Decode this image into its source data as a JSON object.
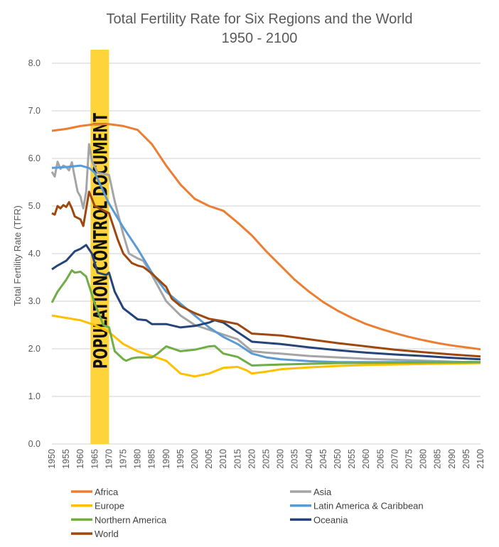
{
  "chart_data": {
    "type": "line",
    "title": "Total Fertility Rate for Six Regions and the World",
    "subtitle": "1950 - 2100",
    "xlabel": "",
    "ylabel": "Total Fertility Rate (TFR)",
    "xlim": [
      1950,
      2100
    ],
    "ylim": [
      0,
      8
    ],
    "grid": true,
    "legend_position": "bottom",
    "x_ticks": [
      "1950",
      "1955",
      "1960",
      "1965",
      "1970",
      "1975",
      "1980",
      "1985",
      "1990",
      "1995",
      "2000",
      "2005",
      "2010",
      "2015",
      "2020",
      "2025",
      "2030",
      "2035",
      "2040",
      "2045",
      "2050",
      "2055",
      "2060",
      "2065",
      "2070",
      "2075",
      "2080",
      "2085",
      "2090",
      "2095",
      "2100"
    ],
    "y_ticks": [
      "0.0",
      "1.0",
      "2.0",
      "3.0",
      "4.0",
      "5.0",
      "6.0",
      "7.0",
      "8.0"
    ],
    "annotation": {
      "text": "POPULATION CONTROL DOCUMENT",
      "x_range": [
        1963.5,
        1970
      ],
      "color": "#FFD43B"
    },
    "series": [
      {
        "name": "Africa",
        "color": "#ED7D31",
        "points": [
          [
            1950,
            6.58
          ],
          [
            1955,
            6.62
          ],
          [
            1960,
            6.68
          ],
          [
            1965,
            6.72
          ],
          [
            1970,
            6.72
          ],
          [
            1975,
            6.68
          ],
          [
            1980,
            6.6
          ],
          [
            1985,
            6.3
          ],
          [
            1990,
            5.85
          ],
          [
            1995,
            5.45
          ],
          [
            2000,
            5.15
          ],
          [
            2005,
            5.0
          ],
          [
            2010,
            4.9
          ],
          [
            2015,
            4.65
          ],
          [
            2020,
            4.38
          ],
          [
            2025,
            4.05
          ],
          [
            2030,
            3.75
          ],
          [
            2035,
            3.45
          ],
          [
            2040,
            3.2
          ],
          [
            2045,
            2.98
          ],
          [
            2050,
            2.8
          ],
          [
            2055,
            2.65
          ],
          [
            2060,
            2.52
          ],
          [
            2065,
            2.42
          ],
          [
            2070,
            2.33
          ],
          [
            2075,
            2.25
          ],
          [
            2080,
            2.18
          ],
          [
            2085,
            2.12
          ],
          [
            2090,
            2.07
          ],
          [
            2095,
            2.03
          ],
          [
            2100,
            1.99
          ]
        ]
      },
      {
        "name": "Asia",
        "color": "#A5A5A5",
        "points": [
          [
            1950,
            5.72
          ],
          [
            1951,
            5.62
          ],
          [
            1952,
            5.93
          ],
          [
            1953,
            5.78
          ],
          [
            1954,
            5.85
          ],
          [
            1955,
            5.82
          ],
          [
            1956,
            5.75
          ],
          [
            1957,
            5.92
          ],
          [
            1958,
            5.6
          ],
          [
            1959,
            5.3
          ],
          [
            1960,
            5.2
          ],
          [
            1961,
            4.95
          ],
          [
            1962,
            5.3
          ],
          [
            1963,
            6.3
          ],
          [
            1964,
            5.95
          ],
          [
            1966,
            5.7
          ],
          [
            1970,
            5.65
          ],
          [
            1972,
            5.1
          ],
          [
            1975,
            4.4
          ],
          [
            1977,
            4.0
          ],
          [
            1980,
            3.9
          ],
          [
            1982,
            3.85
          ],
          [
            1985,
            3.55
          ],
          [
            1990,
            3.0
          ],
          [
            1995,
            2.7
          ],
          [
            2000,
            2.5
          ],
          [
            2005,
            2.4
          ],
          [
            2010,
            2.3
          ],
          [
            2015,
            2.2
          ],
          [
            2020,
            1.95
          ],
          [
            2025,
            1.92
          ],
          [
            2030,
            1.9
          ],
          [
            2040,
            1.85
          ],
          [
            2050,
            1.82
          ],
          [
            2060,
            1.79
          ],
          [
            2070,
            1.77
          ],
          [
            2080,
            1.75
          ],
          [
            2090,
            1.73
          ],
          [
            2100,
            1.72
          ]
        ]
      },
      {
        "name": "Europe",
        "color": "#FFC000",
        "points": [
          [
            1950,
            2.7
          ],
          [
            1955,
            2.65
          ],
          [
            1960,
            2.6
          ],
          [
            1965,
            2.5
          ],
          [
            1970,
            2.35
          ],
          [
            1975,
            2.1
          ],
          [
            1980,
            1.95
          ],
          [
            1985,
            1.85
          ],
          [
            1990,
            1.75
          ],
          [
            1995,
            1.48
          ],
          [
            2000,
            1.42
          ],
          [
            2005,
            1.48
          ],
          [
            2010,
            1.6
          ],
          [
            2015,
            1.62
          ],
          [
            2018,
            1.55
          ],
          [
            2020,
            1.48
          ],
          [
            2025,
            1.52
          ],
          [
            2030,
            1.57
          ],
          [
            2040,
            1.61
          ],
          [
            2050,
            1.64
          ],
          [
            2060,
            1.66
          ],
          [
            2080,
            1.68
          ],
          [
            2100,
            1.7
          ]
        ]
      },
      {
        "name": "Latin America & Caribbean",
        "color": "#5B9BD5",
        "points": [
          [
            1950,
            5.8
          ],
          [
            1955,
            5.82
          ],
          [
            1960,
            5.85
          ],
          [
            1963,
            5.8
          ],
          [
            1965,
            5.7
          ],
          [
            1970,
            5.05
          ],
          [
            1975,
            4.55
          ],
          [
            1980,
            4.1
          ],
          [
            1985,
            3.6
          ],
          [
            1990,
            3.2
          ],
          [
            1995,
            2.95
          ],
          [
            2000,
            2.7
          ],
          [
            2005,
            2.45
          ],
          [
            2010,
            2.25
          ],
          [
            2015,
            2.1
          ],
          [
            2020,
            1.9
          ],
          [
            2025,
            1.82
          ],
          [
            2030,
            1.78
          ],
          [
            2040,
            1.74
          ],
          [
            2050,
            1.72
          ],
          [
            2100,
            1.72
          ]
        ]
      },
      {
        "name": "Northern America",
        "color": "#70AD47",
        "points": [
          [
            1950,
            2.97
          ],
          [
            1952,
            3.2
          ],
          [
            1955,
            3.45
          ],
          [
            1957,
            3.65
          ],
          [
            1958,
            3.6
          ],
          [
            1960,
            3.62
          ],
          [
            1962,
            3.52
          ],
          [
            1965,
            2.95
          ],
          [
            1968,
            2.5
          ],
          [
            1970,
            2.45
          ],
          [
            1972,
            1.95
          ],
          [
            1975,
            1.78
          ],
          [
            1976,
            1.75
          ],
          [
            1978,
            1.8
          ],
          [
            1980,
            1.82
          ],
          [
            1985,
            1.82
          ],
          [
            1987,
            1.9
          ],
          [
            1990,
            2.05
          ],
          [
            1995,
            1.95
          ],
          [
            2000,
            1.98
          ],
          [
            2005,
            2.05
          ],
          [
            2007,
            2.06
          ],
          [
            2010,
            1.9
          ],
          [
            2015,
            1.83
          ],
          [
            2020,
            1.65
          ],
          [
            2030,
            1.67
          ],
          [
            2050,
            1.7
          ],
          [
            2100,
            1.72
          ]
        ]
      },
      {
        "name": "Oceania",
        "color": "#264478",
        "points": [
          [
            1950,
            3.67
          ],
          [
            1952,
            3.75
          ],
          [
            1955,
            3.85
          ],
          [
            1958,
            4.05
          ],
          [
            1960,
            4.1
          ],
          [
            1962,
            4.18
          ],
          [
            1964,
            4.0
          ],
          [
            1966,
            3.6
          ],
          [
            1969,
            3.55
          ],
          [
            1970,
            3.6
          ],
          [
            1972,
            3.2
          ],
          [
            1975,
            2.85
          ],
          [
            1980,
            2.62
          ],
          [
            1983,
            2.6
          ],
          [
            1985,
            2.52
          ],
          [
            1990,
            2.52
          ],
          [
            1995,
            2.45
          ],
          [
            2000,
            2.48
          ],
          [
            2005,
            2.55
          ],
          [
            2007,
            2.6
          ],
          [
            2010,
            2.55
          ],
          [
            2015,
            2.35
          ],
          [
            2020,
            2.15
          ],
          [
            2030,
            2.1
          ],
          [
            2040,
            2.03
          ],
          [
            2050,
            1.97
          ],
          [
            2060,
            1.92
          ],
          [
            2070,
            1.88
          ],
          [
            2080,
            1.85
          ],
          [
            2090,
            1.81
          ],
          [
            2100,
            1.78
          ]
        ]
      },
      {
        "name": "World",
        "color": "#9E480E",
        "points": [
          [
            1950,
            4.85
          ],
          [
            1951,
            4.82
          ],
          [
            1952,
            5.0
          ],
          [
            1953,
            4.95
          ],
          [
            1954,
            5.02
          ],
          [
            1955,
            4.98
          ],
          [
            1956,
            5.08
          ],
          [
            1957,
            4.95
          ],
          [
            1958,
            4.78
          ],
          [
            1960,
            4.72
          ],
          [
            1961,
            4.58
          ],
          [
            1963,
            5.3
          ],
          [
            1965,
            5.0
          ],
          [
            1970,
            4.85
          ],
          [
            1973,
            4.3
          ],
          [
            1975,
            4.0
          ],
          [
            1978,
            3.8
          ],
          [
            1980,
            3.75
          ],
          [
            1982,
            3.72
          ],
          [
            1985,
            3.58
          ],
          [
            1990,
            3.3
          ],
          [
            1992,
            3.05
          ],
          [
            1995,
            2.9
          ],
          [
            2000,
            2.75
          ],
          [
            2005,
            2.63
          ],
          [
            2010,
            2.58
          ],
          [
            2015,
            2.52
          ],
          [
            2020,
            2.32
          ],
          [
            2030,
            2.28
          ],
          [
            2040,
            2.2
          ],
          [
            2050,
            2.12
          ],
          [
            2060,
            2.05
          ],
          [
            2070,
            1.98
          ],
          [
            2080,
            1.93
          ],
          [
            2090,
            1.88
          ],
          [
            2100,
            1.84
          ]
        ]
      }
    ]
  }
}
